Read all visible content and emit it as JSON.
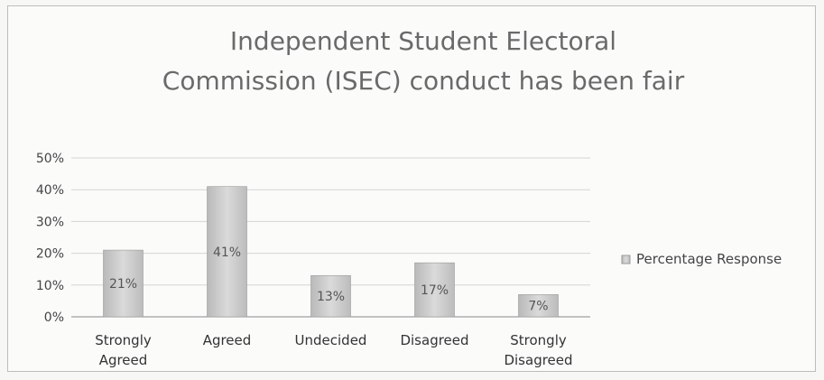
{
  "chart_data": {
    "type": "bar",
    "title_lines": [
      "Independent Student Electoral",
      "Commission (ISEC) conduct has been fair"
    ],
    "categories": [
      [
        "Strongly",
        "Agreed"
      ],
      [
        "Agreed"
      ],
      [
        "Undecided"
      ],
      [
        "Disagreed"
      ],
      [
        "Strongly",
        "Disagreed"
      ]
    ],
    "series": [
      {
        "name": "Percentage Response",
        "values": [
          21,
          41,
          13,
          17,
          7
        ]
      }
    ],
    "data_labels": [
      "21%",
      "41%",
      "13%",
      "17%",
      "7%"
    ],
    "y_ticks": [
      "0%",
      "10%",
      "20%",
      "30%",
      "40%",
      "50%"
    ],
    "ylim": [
      0,
      50
    ],
    "grid": true,
    "legend_position": "right",
    "colors": {
      "bar": "#c9c9c9",
      "bar_edge": "#9a9a9a",
      "grid": "#d4d4d4",
      "axis": "#8a8a8a"
    }
  }
}
